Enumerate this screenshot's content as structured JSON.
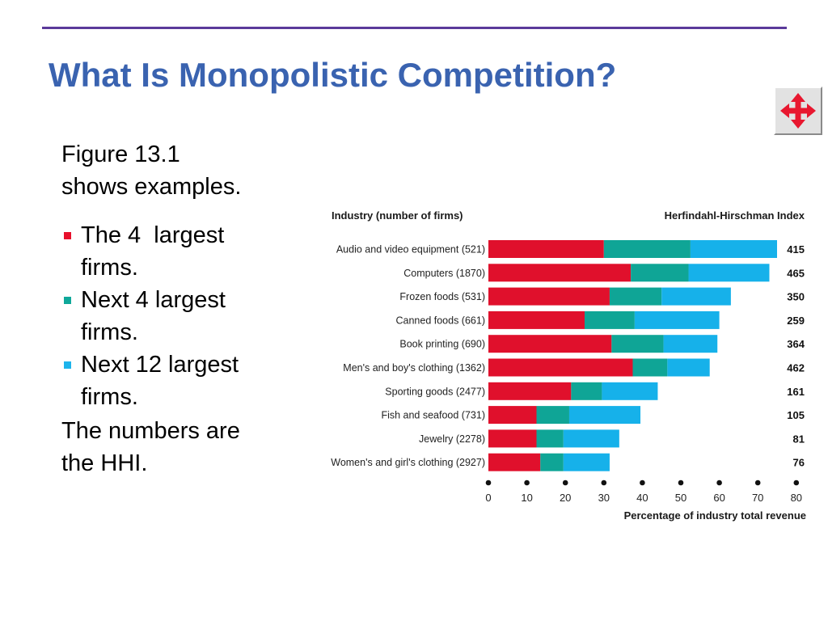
{
  "slide": {
    "title": "What Is Monopolistic Competition?",
    "intro": [
      "Figure 13.1",
      "shows examples."
    ],
    "bullets": [
      {
        "lines": [
          "The 4  largest",
          "firms."
        ],
        "color": "#e8102c"
      },
      {
        "lines": [
          "Next 4 largest",
          "firms."
        ],
        "color": "#0fa89a"
      },
      {
        "lines": [
          "Next 12 largest",
          "firms."
        ],
        "color": "#1db4ec"
      }
    ],
    "outro": [
      "The numbers are",
      "the HHI."
    ]
  },
  "nav": {
    "icon": "four-way-arrows-icon",
    "color": "#e8172f"
  },
  "chart_data": {
    "type": "bar",
    "orientation": "horizontal",
    "stacked": true,
    "left_header": "Industry (number of firms)",
    "right_header": "Herfindahl-Hirschman Index",
    "xlabel": "Percentage of industry total revenue",
    "xlim": [
      0,
      80
    ],
    "xticks": [
      0,
      10,
      20,
      30,
      40,
      50,
      60,
      70,
      80
    ],
    "categories": [
      "Audio and video equipment  (521)",
      "Computers  (1870)",
      "Frozen foods  (531)",
      "Canned foods  (661)",
      "Book printing  (690)",
      "Men's and boy's clothing  (1362)",
      "Sporting goods  (2477)",
      "Fish and seafood  (731)",
      "Jewelry  (2278)",
      "Women's and girl's clothing  (2927)"
    ],
    "series": [
      {
        "color": "#e0102c",
        "values": [
          30,
          37,
          31.5,
          25,
          32,
          37.5,
          21.5,
          12.5,
          12.5,
          13.5
        ]
      },
      {
        "color": "#0fa596",
        "values": [
          22.5,
          15,
          13.5,
          13,
          13.5,
          9,
          8,
          8.5,
          7,
          6
        ]
      },
      {
        "color": "#16b1ea",
        "values": [
          22.5,
          21,
          18,
          22,
          14,
          11,
          14.5,
          18.5,
          14.5,
          12
        ]
      }
    ],
    "hhi": [
      415,
      465,
      350,
      259,
      364,
      462,
      161,
      105,
      81,
      76
    ]
  }
}
